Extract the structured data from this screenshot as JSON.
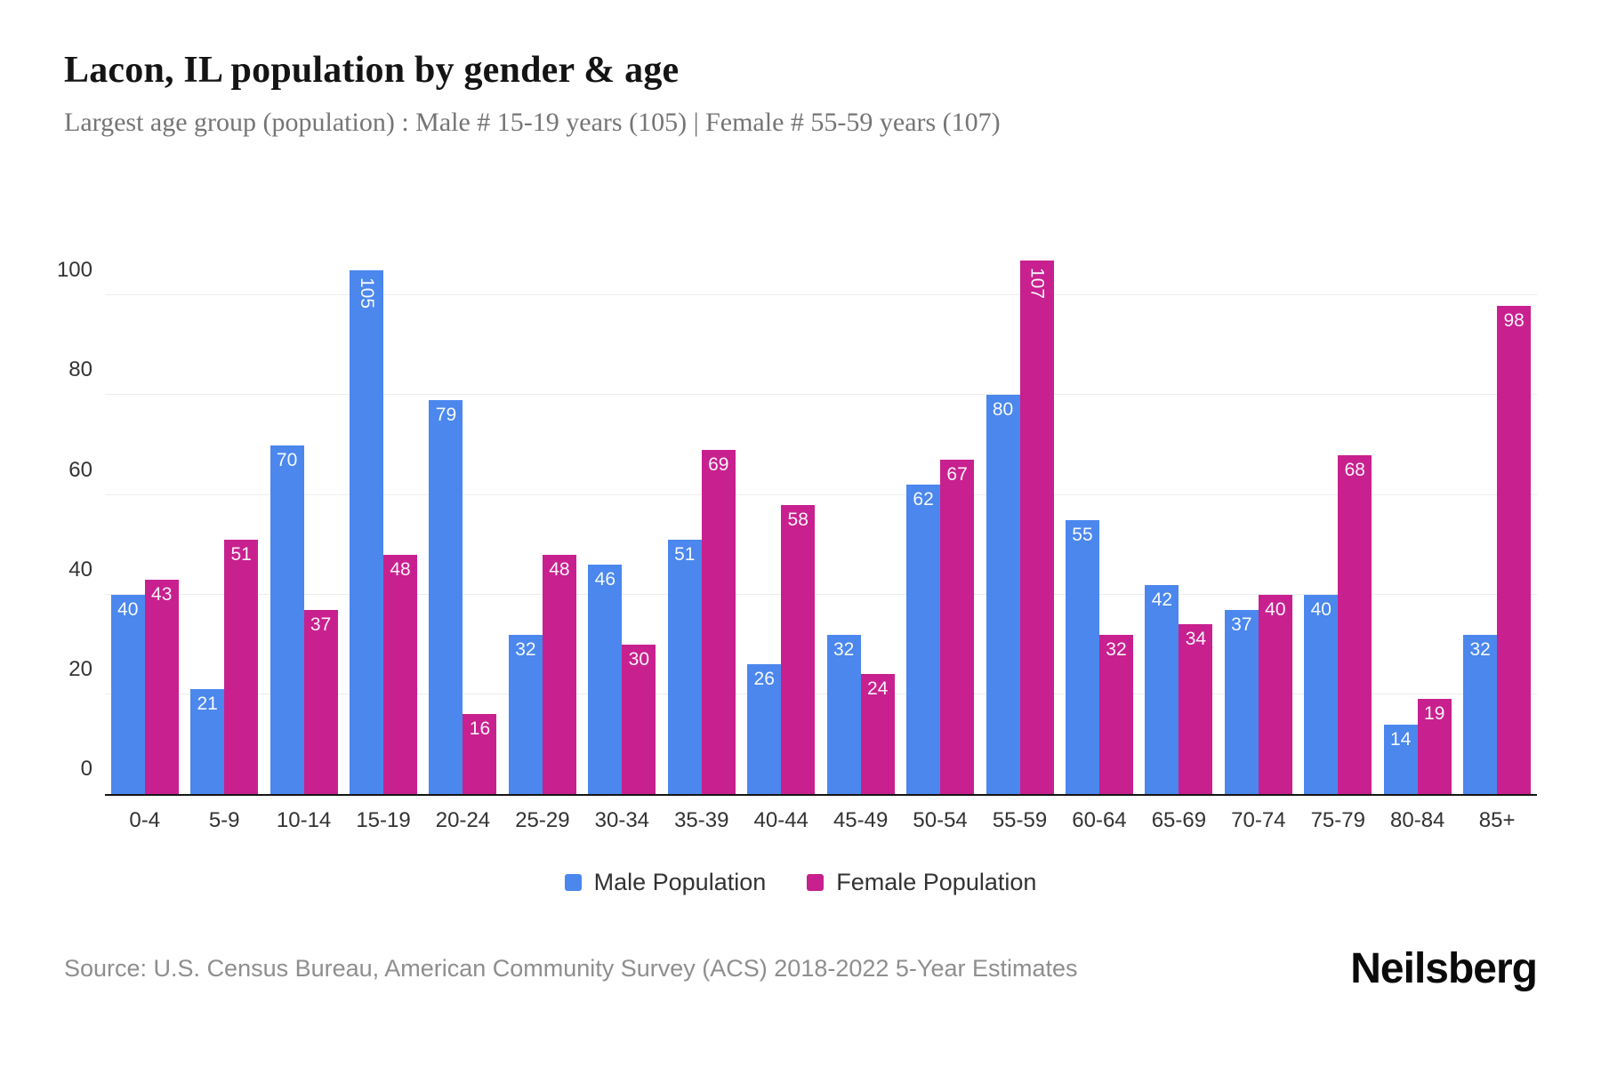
{
  "page": {
    "title": "Lacon, IL population by gender & age",
    "subtitle": "Largest age group (population) : Male # 15-19 years (105) | Female # 55-59 years (107)",
    "source": "Source: U.S. Census Bureau, American Community Survey (ACS) 2018-2022 5-Year Estimates",
    "brand": "Neilsberg"
  },
  "chart_data": {
    "type": "bar",
    "title": "Lacon, IL population by gender & age",
    "subtitle": "Largest age group (population) : Male # 15-19 years (105) | Female # 55-59 years (107)",
    "categories": [
      "0-4",
      "5-9",
      "10-14",
      "15-19",
      "20-24",
      "25-29",
      "30-34",
      "35-39",
      "40-44",
      "45-49",
      "50-54",
      "55-59",
      "60-64",
      "65-69",
      "70-74",
      "75-79",
      "80-84",
      "85+"
    ],
    "series": [
      {
        "name": "Male Population",
        "color": "#4b87ed",
        "values": [
          40,
          21,
          70,
          105,
          79,
          32,
          46,
          51,
          26,
          32,
          62,
          80,
          55,
          42,
          37,
          40,
          14,
          32
        ]
      },
      {
        "name": "Female Population",
        "color": "#c8208f",
        "values": [
          43,
          51,
          37,
          48,
          16,
          48,
          30,
          69,
          58,
          24,
          67,
          107,
          32,
          34,
          40,
          68,
          19,
          98
        ]
      }
    ],
    "xlabel": "",
    "ylabel": "",
    "ylim": [
      0,
      112
    ],
    "yticks": [
      0,
      20,
      40,
      60,
      80,
      100
    ],
    "grid": "horizontal",
    "legend_position": "bottom",
    "value_labels": "inside-top white; vertical when value > 99"
  }
}
